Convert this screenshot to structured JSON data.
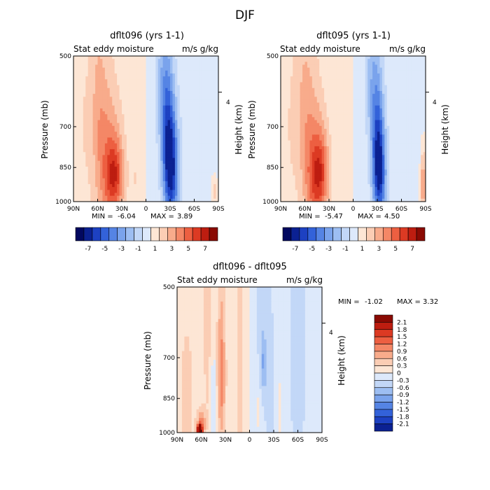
{
  "figure_title": "DJF",
  "chart_data": [
    {
      "type": "heatmap",
      "title": "dflt096 (yrs 1-1)",
      "subtitle_left": "Stat eddy moisture",
      "subtitle_right": "m/s g/kg",
      "ylabel": "Pressure (mb)",
      "ylabel_right": "Height (km)",
      "y_ticks": [
        "500",
        "700",
        "850",
        "1000"
      ],
      "y_tick_values": [
        500,
        700,
        850,
        1000
      ],
      "height_tick": "4",
      "x_ticks": [
        "90N",
        "60N",
        "30N",
        "0",
        "30S",
        "60S",
        "90S"
      ],
      "x_tick_values": [
        90,
        60,
        30,
        0,
        -30,
        -60,
        -90
      ],
      "min_label": "MIN =",
      "min_value": "-6.04",
      "max_label": "MAX =",
      "max_value": "3.89",
      "colorbar_labels": [
        "-7",
        "-5",
        "-3",
        "-1",
        "1",
        "3",
        "5",
        "7"
      ],
      "blobs": [
        {
          "lat": 42,
          "p": 900,
          "w": 14,
          "h": 260,
          "v": 3.5
        },
        {
          "lat": 38,
          "p": 870,
          "w": 10,
          "h": 120,
          "v": 2.5
        },
        {
          "lat": 55,
          "p": 760,
          "w": 14,
          "h": 360,
          "v": 1.5
        },
        {
          "lat": 60,
          "p": 620,
          "w": 10,
          "h": 250,
          "v": 1.0
        },
        {
          "lat": -32,
          "p": 880,
          "w": 9,
          "h": 220,
          "v": -5.5
        },
        {
          "lat": -28,
          "p": 760,
          "w": 8,
          "h": 220,
          "v": -3.5
        },
        {
          "lat": -24,
          "p": 640,
          "w": 9,
          "h": 220,
          "v": -2.0
        },
        {
          "lat": -20,
          "p": 540,
          "w": 8,
          "h": 140,
          "v": -1.0
        },
        {
          "lat": 80,
          "p": 700,
          "w": 10,
          "h": 500,
          "v": 0.6
        },
        {
          "lat": -70,
          "p": 700,
          "w": 20,
          "h": 500,
          "v": -0.6
        },
        {
          "lat": -85,
          "p": 950,
          "w": 4,
          "h": 80,
          "v": 2.0
        },
        {
          "lat": 12,
          "p": 900,
          "w": 6,
          "h": 150,
          "v": 0.7
        }
      ]
    },
    {
      "type": "heatmap",
      "title": "dflt095 (yrs 1-1)",
      "subtitle_left": "Stat eddy moisture",
      "subtitle_right": "m/s g/kg",
      "ylabel": "Pressure (mb)",
      "ylabel_right": "Height (km)",
      "y_ticks": [
        "500",
        "700",
        "850",
        "1000"
      ],
      "y_tick_values": [
        500,
        700,
        850,
        1000
      ],
      "height_tick": "4",
      "x_ticks": [
        "90N",
        "60N",
        "30N",
        "0",
        "30S",
        "60S",
        "90S"
      ],
      "x_tick_values": [
        90,
        60,
        30,
        0,
        -30,
        -60,
        -90
      ],
      "min_label": "MIN =",
      "min_value": "-5.47",
      "max_label": "MAX =",
      "max_value": "4.50",
      "colorbar_labels": [
        "-7",
        "-5",
        "-3",
        "-1",
        "1",
        "3",
        "5",
        "7"
      ],
      "blobs": [
        {
          "lat": 45,
          "p": 920,
          "w": 13,
          "h": 240,
          "v": 3.8
        },
        {
          "lat": 40,
          "p": 850,
          "w": 10,
          "h": 140,
          "v": 2.2
        },
        {
          "lat": 55,
          "p": 760,
          "w": 14,
          "h": 360,
          "v": 1.5
        },
        {
          "lat": 62,
          "p": 620,
          "w": 10,
          "h": 250,
          "v": 1.0
        },
        {
          "lat": -33,
          "p": 900,
          "w": 8,
          "h": 200,
          "v": -5.0
        },
        {
          "lat": -31,
          "p": 780,
          "w": 7,
          "h": 200,
          "v": -3.5
        },
        {
          "lat": -27,
          "p": 640,
          "w": 9,
          "h": 220,
          "v": -2.0
        },
        {
          "lat": -22,
          "p": 540,
          "w": 8,
          "h": 140,
          "v": -1.0
        },
        {
          "lat": 80,
          "p": 700,
          "w": 10,
          "h": 500,
          "v": 0.6
        },
        {
          "lat": -70,
          "p": 700,
          "w": 20,
          "h": 500,
          "v": -0.6
        },
        {
          "lat": -87,
          "p": 920,
          "w": 4,
          "h": 160,
          "v": 3.5
        },
        {
          "lat": 15,
          "p": 880,
          "w": 6,
          "h": 150,
          "v": 0.7
        }
      ]
    },
    {
      "type": "heatmap",
      "title": "dflt096 - dflt095",
      "subtitle_left": "Stat eddy moisture",
      "subtitle_right": "m/s g/kg",
      "ylabel": "Pressure (mb)",
      "ylabel_right": "Height (km)",
      "y_ticks": [
        "500",
        "700",
        "850",
        "1000"
      ],
      "y_tick_values": [
        500,
        700,
        850,
        1000
      ],
      "height_tick": "4",
      "x_ticks": [
        "90N",
        "60N",
        "30N",
        "0",
        "30S",
        "60S",
        "90S"
      ],
      "x_tick_values": [
        90,
        60,
        30,
        0,
        -30,
        -60,
        -90
      ],
      "min_label": "MIN =",
      "min_value": "-1.02",
      "max_label": "MAX =",
      "max_value": "3.32",
      "colorbar_labels": [
        "2.1",
        "1.8",
        "1.5",
        "1.2",
        "0.9",
        "0.6",
        "0.3",
        "0",
        "-0.3",
        "-0.6",
        "-0.9",
        "-1.2",
        "-1.5",
        "-1.8",
        "-2.1"
      ],
      "blobs": [
        {
          "lat": 62,
          "p": 990,
          "w": 3,
          "h": 25,
          "v": 3.0
        },
        {
          "lat": 60,
          "p": 960,
          "w": 5,
          "h": 60,
          "v": 1.0
        },
        {
          "lat": 35,
          "p": 770,
          "w": 4,
          "h": 200,
          "v": 0.65
        },
        {
          "lat": 35,
          "p": 720,
          "w": 6,
          "h": 420,
          "v": 0.35
        },
        {
          "lat": 78,
          "p": 860,
          "w": 8,
          "h": 250,
          "v": 0.35
        },
        {
          "lat": 52,
          "p": 620,
          "w": 5,
          "h": 300,
          "v": 0.3
        },
        {
          "lat": 12,
          "p": 700,
          "w": 5,
          "h": 400,
          "v": 0.3
        },
        {
          "lat": -10,
          "p": 880,
          "w": 4,
          "h": 180,
          "v": 0.3
        },
        {
          "lat": -38,
          "p": 900,
          "w": 4,
          "h": 180,
          "v": 0.3
        },
        {
          "lat": 45,
          "p": 860,
          "w": 4,
          "h": 260,
          "v": -0.35
        },
        {
          "lat": -18,
          "p": 720,
          "w": 3,
          "h": 90,
          "v": -0.65
        },
        {
          "lat": -14,
          "p": 620,
          "w": 5,
          "h": 250,
          "v": -0.35
        },
        {
          "lat": -25,
          "p": 820,
          "w": 5,
          "h": 300,
          "v": -0.35
        },
        {
          "lat": -60,
          "p": 700,
          "w": 12,
          "h": 500,
          "v": -0.2
        }
      ]
    }
  ]
}
